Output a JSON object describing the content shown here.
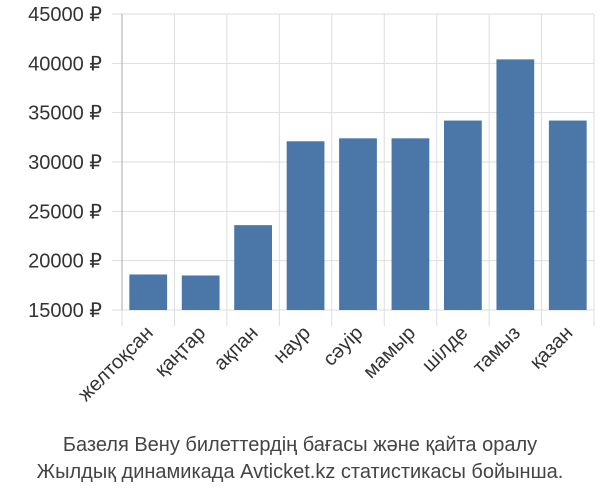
{
  "chart_data": {
    "type": "bar",
    "categories": [
      "желтоқсан",
      "қаңтар",
      "ақпан",
      "наур",
      "сәуір",
      "мамыр",
      "шілде",
      "тамыз",
      "қазан"
    ],
    "values": [
      18600,
      18500,
      23600,
      32100,
      32400,
      32400,
      34200,
      40400,
      34200
    ],
    "ylim": [
      15000,
      45000
    ],
    "yticks": [
      15000,
      20000,
      25000,
      30000,
      35000,
      40000,
      45000
    ],
    "ytick_labels": [
      "15000 ₽",
      "20000 ₽",
      "25000 ₽",
      "30000 ₽",
      "35000 ₽",
      "40000 ₽",
      "45000 ₽"
    ],
    "grid": true,
    "bar_color": "#4a76a8"
  },
  "caption": {
    "line1": "Базеля Вену билеттердің бағасы және қайта оралу",
    "line2": "Жылдық динамикада Avticket.kz статистикасы бойынша."
  }
}
